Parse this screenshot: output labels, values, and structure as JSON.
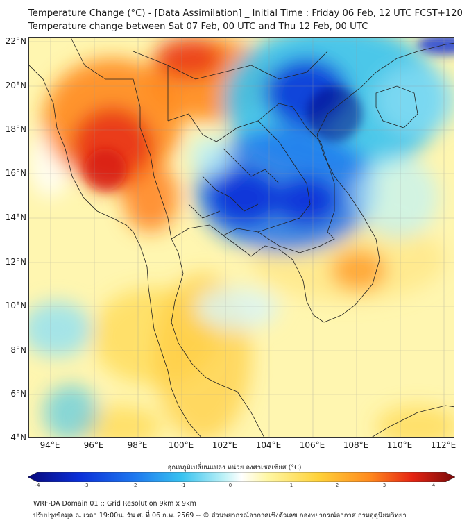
{
  "title_line1": "Temperature Change (°C) - [Data Assimilation] _ Initial Time : Friday 06 Feb, 12 UTC FCST+120",
  "title_line2": "Temperature change between Sat 07 Feb, 00 UTC and Thu 12 Feb, 00 UTC",
  "map": {
    "lon_range": [
      93,
      112.5
    ],
    "lat_range": [
      4,
      22.2
    ],
    "lat_ticks": [
      "22°N",
      "20°N",
      "18°N",
      "16°N",
      "14°N",
      "12°N",
      "10°N",
      "8°N",
      "6°N",
      "4°N"
    ],
    "lon_ticks": [
      "94°E",
      "96°E",
      "98°E",
      "100°E",
      "102°E",
      "104°E",
      "106°E",
      "108°E",
      "110°E",
      "112°E"
    ],
    "regions": [
      {
        "name": "Myanmar warm anomaly",
        "lon": 96.5,
        "lat": 18,
        "change": 3.0
      },
      {
        "name": "Northern Laos warm anomaly",
        "lon": 100.5,
        "lat": 20.8,
        "change": 2.6
      },
      {
        "name": "Northeast Thailand cold anomaly",
        "lon": 103,
        "lat": 15.5,
        "change": -3.2
      },
      {
        "name": "Southern Laos cold anomaly",
        "lon": 105.5,
        "lat": 14.7,
        "change": -3.3
      },
      {
        "name": "Northern Vietnam cold anomaly",
        "lon": 105,
        "lat": 20,
        "change": -3.4
      },
      {
        "name": "Southern Vietnam warm spot",
        "lon": 108,
        "lat": 11.5,
        "change": 2.4
      }
    ]
  },
  "colorbar": {
    "title": "อุณหภูมิเปลี่ยนแปลง หน่วย องศาเซลเซียส (°C)",
    "ticks": [
      "-4",
      "-3",
      "-2",
      "-1",
      "0",
      "1",
      "2",
      "3",
      "4"
    ],
    "range": [
      -4,
      4
    ],
    "colors": [
      "#08087a",
      "#0a2fd8",
      "#1e78ef",
      "#37c2f0",
      "#bff2f7",
      "#ffffff",
      "#fff7a6",
      "#ffd23a",
      "#ff8a1e",
      "#e52412",
      "#7a0a0a"
    ]
  },
  "footer_line1": "WRF-DA Domain 01 :: Grid Resolution 9km x 9km",
  "footer_line2": "ปรับปรุงข้อมูล ณ เวลา 19:00น. วัน ศ. ที่ 06 ก.พ. 2569 -- © ส่วนพยากรณ์อากาศเชิงตัวเลข กองพยากรณ์อากาศ กรมอุตุนิยมวิทยา"
}
